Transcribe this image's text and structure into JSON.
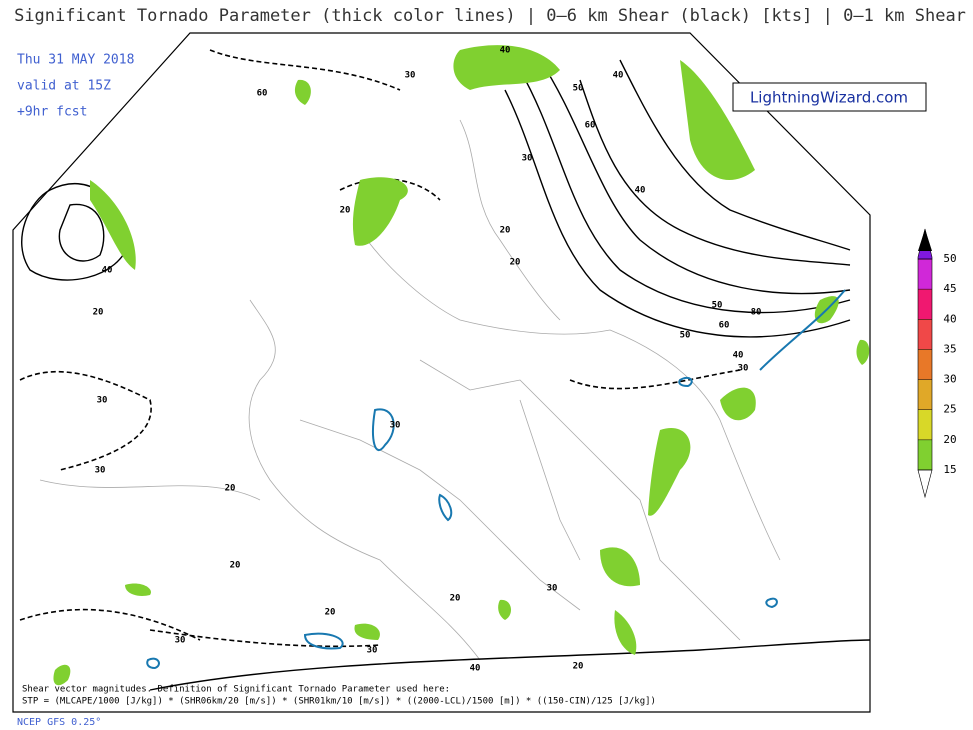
{
  "header": {
    "title": "Significant Tornado Parameter (thick color lines) | 0–6 km Shear (black) [kts] | 0–1 km Shear",
    "date": "Thu 31 MAY 2018",
    "valid": "valid at 15Z",
    "forecast": "+9hr fcst",
    "brand": "LightningWizard.com"
  },
  "colorbar": {
    "ticks": [
      15,
      20,
      25,
      30,
      35,
      40,
      45,
      50
    ],
    "colors": [
      "#80d030",
      "#d8d828",
      "#e0a828",
      "#e87828",
      "#f04848",
      "#f01870",
      "#d028d8",
      "#8018e0"
    ],
    "over_color": "#000000"
  },
  "contour_labels": [
    "30",
    "60",
    "40",
    "50",
    "60",
    "40",
    "30",
    "20",
    "20",
    "20",
    "40",
    "40",
    "50",
    "60",
    "80",
    "50",
    "40",
    "30",
    "20",
    "30",
    "30",
    "20",
    "30",
    "20",
    "20",
    "30",
    "20",
    "30",
    "40",
    "30",
    "20"
  ],
  "footer": {
    "definition": "Shear vector magnitudes. Definition of Significant Tornado Parameter used here:",
    "formula": "STP = (MLCAPE/1000 [J/kg]) * (SHR06km/20 [m/s]) * (SHR01km/10 [m/s]) * ((2000-LCL)/1500 [m]) * ((150-CIN)/125 [J/kg])",
    "model": "NCEP GFS 0.25°"
  }
}
